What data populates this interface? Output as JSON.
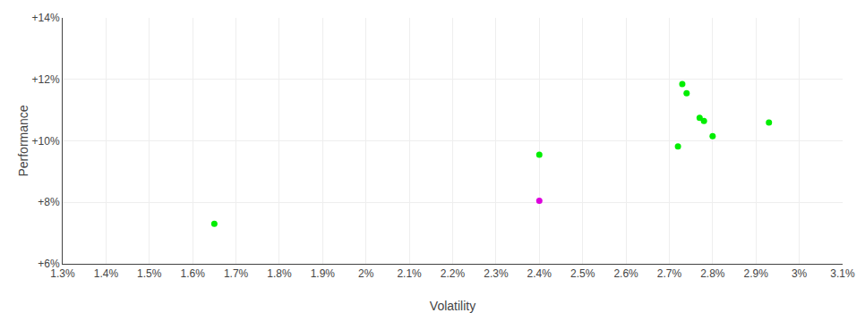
{
  "chart_data": {
    "type": "scatter",
    "xlabel": "Volatility",
    "ylabel": "Performance",
    "series": [
      {
        "color": "#00ee00",
        "x": [
          1.65,
          2.4,
          2.73,
          2.74,
          2.77,
          2.78,
          2.8,
          2.72,
          2.93
        ],
        "values": [
          7.3,
          9.55,
          11.85,
          11.55,
          10.75,
          10.65,
          10.15,
          9.82,
          10.6
        ]
      },
      {
        "color": "#dd00dd",
        "x": [
          2.4
        ],
        "values": [
          8.05
        ]
      }
    ],
    "xlim": [
      1.3,
      3.1
    ],
    "ylim": [
      6.0,
      14.0
    ],
    "xticks": [
      {
        "value": 1.3,
        "label": "1.3%"
      },
      {
        "value": 1.4,
        "label": "1.4%"
      },
      {
        "value": 1.5,
        "label": "1.5%"
      },
      {
        "value": 1.6,
        "label": "1.6%"
      },
      {
        "value": 1.7,
        "label": "1.7%"
      },
      {
        "value": 1.8,
        "label": "1.8%"
      },
      {
        "value": 1.9,
        "label": "1.9%"
      },
      {
        "value": 2.0,
        "label": "2%"
      },
      {
        "value": 2.1,
        "label": "2.1%"
      },
      {
        "value": 2.2,
        "label": "2.2%"
      },
      {
        "value": 2.3,
        "label": "2.3%"
      },
      {
        "value": 2.4,
        "label": "2.4%"
      },
      {
        "value": 2.5,
        "label": "2.5%"
      },
      {
        "value": 2.6,
        "label": "2.6%"
      },
      {
        "value": 2.7,
        "label": "2.7%"
      },
      {
        "value": 2.8,
        "label": "2.8%"
      },
      {
        "value": 2.9,
        "label": "2.9%"
      },
      {
        "value": 3.0,
        "label": "3%"
      },
      {
        "value": 3.1,
        "label": "3.1%"
      }
    ],
    "yticks": [
      {
        "value": 6,
        "label": "+6%"
      },
      {
        "value": 8,
        "label": "+8%"
      },
      {
        "value": 10,
        "label": "+10%"
      },
      {
        "value": 12,
        "label": "+12%"
      },
      {
        "value": 14,
        "label": "+14%"
      }
    ],
    "grid": true
  }
}
